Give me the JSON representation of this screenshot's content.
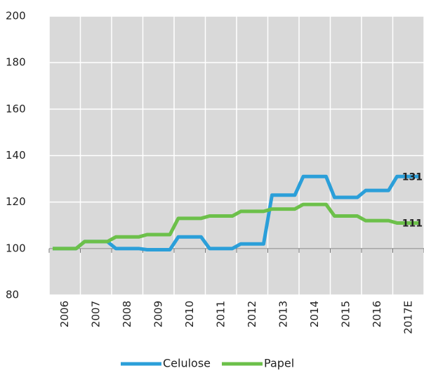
{
  "chart_data": {
    "type": "line",
    "step": true,
    "categories": [
      "2006",
      "2007",
      "2008",
      "2009",
      "2010",
      "2011",
      "2012",
      "2013",
      "2014",
      "2015",
      "2016",
      "2017E"
    ],
    "series": [
      {
        "name": "Celulose",
        "color": "#2b9fd9",
        "values": [
          100,
          103,
          100,
          99.5,
          105,
          100,
          102,
          123,
          131,
          122,
          125,
          131
        ]
      },
      {
        "name": "Papel",
        "color": "#6cc04a",
        "values": [
          100,
          103,
          105,
          106,
          113,
          114,
          116,
          117,
          119,
          114,
          112,
          111
        ]
      }
    ],
    "ylim": [
      80,
      200
    ],
    "yticks": [
      80,
      100,
      120,
      140,
      160,
      180,
      200
    ],
    "x_axis_at": 100,
    "grid": true,
    "plot_background": "#d9d9d9",
    "legend": "bottom"
  }
}
